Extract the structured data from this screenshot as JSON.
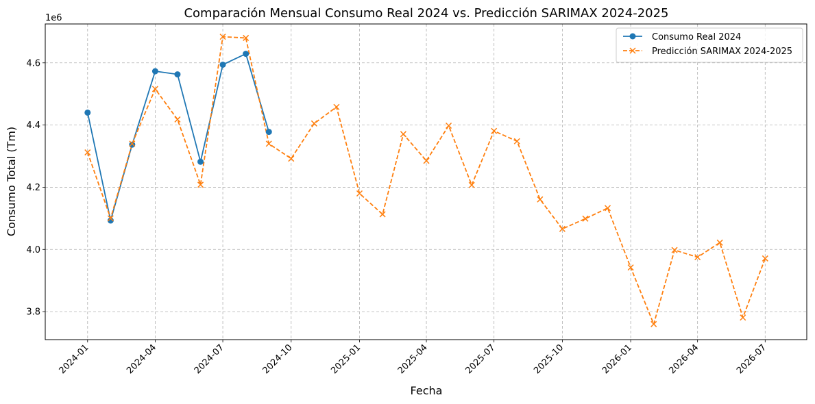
{
  "chart_data": {
    "type": "line",
    "title": "Comparación Mensual Consumo Real 2024 vs. Predicción SARIMAX 2024-2025",
    "xlabel": "Fecha",
    "ylabel": "Consumo Total (Tm)",
    "y_offset_label": "1e6",
    "y_scale_factor": 1000000,
    "xlim": [
      "2023-11-05",
      "2026-08-26"
    ],
    "ylim": [
      3.71,
      4.725
    ],
    "grid": true,
    "legend_position": "top-right",
    "x_ticks": [
      "2024-01",
      "2024-04",
      "2024-07",
      "2024-10",
      "2025-01",
      "2025-04",
      "2025-07",
      "2025-10",
      "2026-01",
      "2026-04",
      "2026-07"
    ],
    "y_ticks": [
      "3.8",
      "4.0",
      "4.2",
      "4.4",
      "4.6"
    ],
    "series": [
      {
        "name": "Consumo Real 2024",
        "color": "#1f77b4",
        "marker": "circle",
        "linestyle": "solid",
        "x": [
          "2024-01-01",
          "2024-02-01",
          "2024-03-01",
          "2024-04-01",
          "2024-05-01",
          "2024-06-01",
          "2024-07-01",
          "2024-08-01",
          "2024-09-01"
        ],
        "values": [
          4.44,
          4.093,
          4.337,
          4.573,
          4.563,
          4.282,
          4.594,
          4.629,
          4.378
        ]
      },
      {
        "name": "Predicción SARIMAX 2024-2025",
        "color": "#ff7f0e",
        "marker": "x",
        "linestyle": "dashed",
        "x": [
          "2024-01-01",
          "2024-02-01",
          "2024-03-01",
          "2024-04-01",
          "2024-05-01",
          "2024-06-01",
          "2024-07-01",
          "2024-08-01",
          "2024-09-01",
          "2024-10-01",
          "2024-11-01",
          "2024-12-01",
          "2025-01-01",
          "2025-02-01",
          "2025-03-01",
          "2025-04-01",
          "2025-05-01",
          "2025-06-01",
          "2025-07-01",
          "2025-08-01",
          "2025-09-01",
          "2025-10-01",
          "2025-11-01",
          "2025-12-01",
          "2026-01-01",
          "2026-02-01",
          "2026-03-01",
          "2026-04-01",
          "2026-05-01",
          "2026-06-01",
          "2026-07-01"
        ],
        "values": [
          4.312,
          4.1,
          4.34,
          4.516,
          4.418,
          4.208,
          4.684,
          4.68,
          4.34,
          4.292,
          4.405,
          4.458,
          4.18,
          4.113,
          4.371,
          4.285,
          4.398,
          4.207,
          4.381,
          4.348,
          4.161,
          4.066,
          4.099,
          4.133,
          3.942,
          3.76,
          3.998,
          3.975,
          4.022,
          3.781,
          3.971
        ]
      }
    ]
  }
}
